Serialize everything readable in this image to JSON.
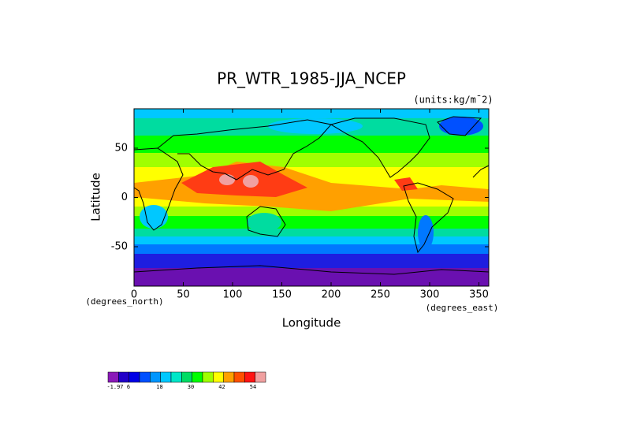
{
  "chart_data": {
    "type": "contour",
    "title": "PR_WTR_1985-JJA_NCEP",
    "subtitle": "(units:kg/m¯2)",
    "x_label": "Longitude",
    "y_label": "Latitude",
    "x_unit": "(degrees_east)",
    "y_unit": "(degrees_north)",
    "xlim": [
      0,
      360
    ],
    "xticks": [
      0,
      50,
      100,
      150,
      200,
      250,
      300,
      350
    ],
    "ylim": [
      -90,
      90
    ],
    "yticks": [
      -50,
      0,
      50
    ],
    "colorbar": {
      "ticks": [
        -1.97,
        6,
        18,
        30,
        42,
        54
      ],
      "colors": [
        "#8a1ab8",
        "#2200c8",
        "#0000e6",
        "#0050ff",
        "#0096ff",
        "#00c8ff",
        "#00e6c8",
        "#00dc64",
        "#00ff00",
        "#a0ff00",
        "#ffff00",
        "#ffa000",
        "#ff5000",
        "#ff1414",
        "#f0a0a0"
      ]
    }
  }
}
